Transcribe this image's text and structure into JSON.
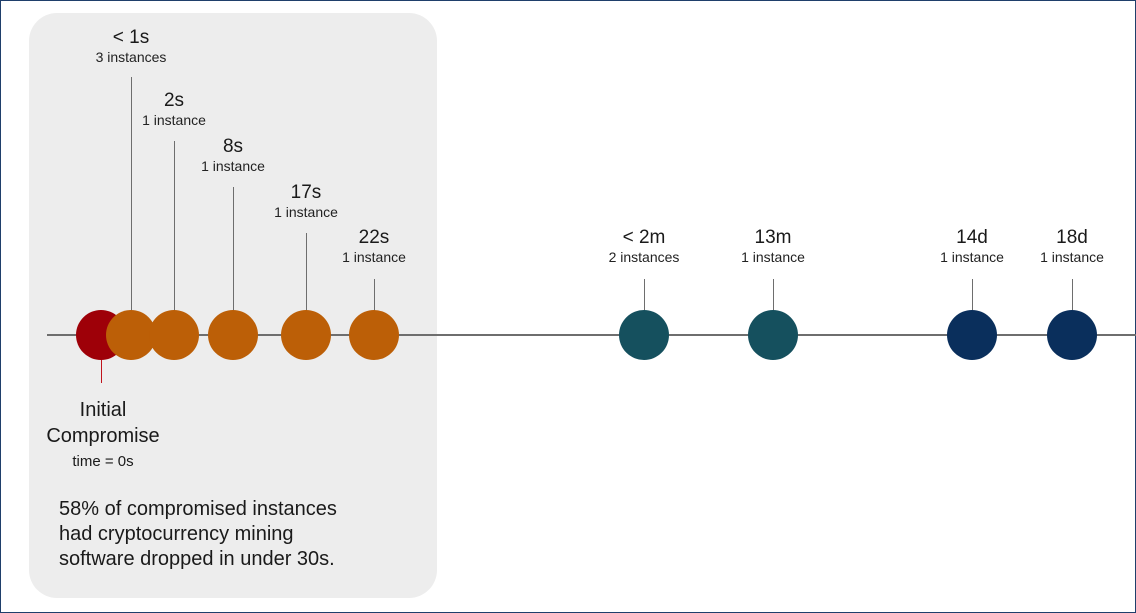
{
  "events": [
    {
      "time": "< 1s",
      "count": "3 instances"
    },
    {
      "time": "2s",
      "count": "1 instance"
    },
    {
      "time": "8s",
      "count": "1 instance"
    },
    {
      "time": "17s",
      "count": "1 instance"
    },
    {
      "time": "22s",
      "count": "1 instance"
    },
    {
      "time": "< 2m",
      "count": "2 instances"
    },
    {
      "time": "13m",
      "count": "1 instance"
    },
    {
      "time": "14d",
      "count": "1 instance"
    },
    {
      "time": "18d",
      "count": "1 instance"
    }
  ],
  "initial": {
    "title_line1": "Initial",
    "title_line2": "Compromise",
    "time": "time = 0s"
  },
  "summary": {
    "line1": "58% of compromised instances",
    "line2": "had cryptocurrency mining",
    "line3": "software dropped in under 30s."
  },
  "colors": {
    "initial": "#9e0008",
    "seconds": "#bc5f07",
    "minutes": "#15505e",
    "days": "#0a2f5c"
  }
}
